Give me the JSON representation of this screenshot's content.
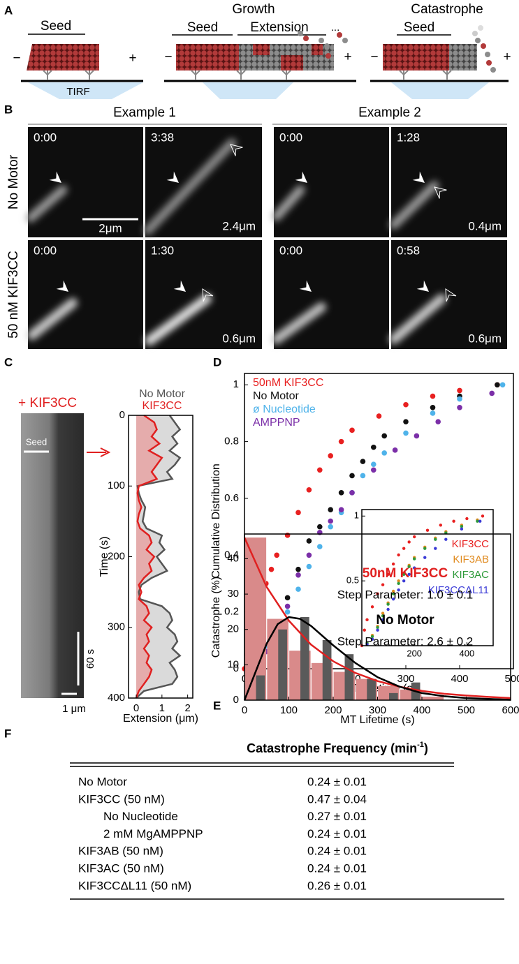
{
  "panel_a": {
    "label": "A",
    "seed_1": "Seed",
    "tirf": "TIRF",
    "growth": "Growth",
    "seed_2": "Seed",
    "extension": "Extension",
    "ellipsis": "...",
    "catastrophe": "Catastrophe",
    "seed_3": "Seed",
    "minus": "−",
    "plus": "+"
  },
  "panel_b": {
    "label": "B",
    "examples": [
      "Example 1",
      "Example 2"
    ],
    "rows": [
      "No Motor",
      "50 nM KIF3CC"
    ],
    "times": [
      [
        "0:00",
        "3:38",
        "0:00",
        "1:28"
      ],
      [
        "0:00",
        "1:30",
        "0:00",
        "0:58"
      ]
    ],
    "extensions": [
      [
        "2.4μm",
        "0.4μm"
      ],
      [
        "0.6μm",
        "0.6μm"
      ]
    ],
    "scale_bar": "2μm"
  },
  "panel_c": {
    "label": "C",
    "condition": "+ KIF3CC",
    "seed": "Seed",
    "time_bar": "60 s",
    "length_bar": "1 μm"
  },
  "panel_d": {
    "label": "D"
  },
  "panel_e": {
    "label": "E"
  },
  "chart_data": [
    {
      "type": "line",
      "swap_axes": true,
      "xlabel": "Time (s)",
      "ylabel": "Extension (μm)",
      "x": [
        0,
        10,
        20,
        30,
        40,
        50,
        60,
        70,
        80,
        90,
        100,
        110,
        120,
        130,
        140,
        150,
        160,
        170,
        180,
        190,
        200,
        210,
        220,
        230,
        240,
        250,
        260,
        270,
        280,
        290,
        300,
        310,
        320,
        330,
        340,
        350,
        360,
        370,
        380,
        390,
        400
      ],
      "xlim": [
        0,
        400
      ],
      "xticks": [
        0,
        100,
        200,
        300,
        400
      ],
      "ylim": [
        -0.3,
        2.2
      ],
      "yticks": [
        0,
        1,
        2
      ],
      "series": [
        {
          "name": "No Motor",
          "color": "#555555",
          "fill": "#d4d4d4",
          "values": [
            1.3,
            1.5,
            1.7,
            1.4,
            1.6,
            1.3,
            1.7,
            1.5,
            1.2,
            1.4,
            0.05,
            0.1,
            0.2,
            0.35,
            0.3,
            0.25,
            0.4,
            1.0,
            0.9,
            1.1,
            0.8,
            1.0,
            1.2,
            0.6,
            0.2,
            0.1,
            0.15,
            1.0,
            1.3,
            1.4,
            1.2,
            1.5,
            1.6,
            1.4,
            1.7,
            1.3,
            1.5,
            1.6,
            1.4,
            0.3,
            0.0
          ]
        },
        {
          "name": "KIF3CC",
          "color": "#e02020",
          "fill": "#e6a3a3",
          "values": [
            0.3,
            0.7,
            0.8,
            0.6,
            0.9,
            0.5,
            1.0,
            0.8,
            0.6,
            0.8,
            0.1,
            0.05,
            0.1,
            0.2,
            0.1,
            0.05,
            0.15,
            0.5,
            0.6,
            0.4,
            0.7,
            0.5,
            0.6,
            0.3,
            0.1,
            0.2,
            0.1,
            0.4,
            0.5,
            0.3,
            0.6,
            0.4,
            0.5,
            0.3,
            0.5,
            0.4,
            0.6,
            0.5,
            0.3,
            0.1,
            0.0
          ]
        }
      ]
    },
    {
      "type": "scatter",
      "xlabel": "MT Lifetime (s)",
      "ylabel": "Cumulative Distribution",
      "xlim": [
        0,
        500
      ],
      "xticks": [
        0,
        100,
        200,
        300,
        400,
        500
      ],
      "ylim": [
        0,
        1.04
      ],
      "yticks": [
        0,
        0.2,
        0.4,
        0.6,
        0.8,
        1
      ],
      "series": [
        {
          "name": "50nM KIF3CC",
          "color": "#e82020",
          "x": [
            0,
            5,
            10,
            20,
            30,
            40,
            50,
            60,
            80,
            100,
            120,
            140,
            160,
            180,
            200,
            250,
            300,
            350,
            400,
            470
          ],
          "values": [
            0,
            0.05,
            0.12,
            0.2,
            0.25,
            0.3,
            0.35,
            0.4,
            0.47,
            0.55,
            0.63,
            0.7,
            0.75,
            0.8,
            0.84,
            0.89,
            0.93,
            0.96,
            0.98,
            1.0
          ]
        },
        {
          "name": "No Motor",
          "color": "#111111",
          "x": [
            10,
            20,
            40,
            60,
            80,
            100,
            120,
            140,
            160,
            180,
            200,
            220,
            240,
            260,
            300,
            350,
            400,
            470
          ],
          "values": [
            0.02,
            0.04,
            0.08,
            0.15,
            0.25,
            0.35,
            0.45,
            0.5,
            0.56,
            0.62,
            0.68,
            0.73,
            0.78,
            0.82,
            0.87,
            0.92,
            0.96,
            1.0
          ]
        },
        {
          "name": "ø Nucleotide",
          "color": "#4fb3ea",
          "x": [
            20,
            40,
            60,
            80,
            100,
            120,
            140,
            160,
            180,
            200,
            220,
            240,
            260,
            300,
            350,
            400,
            480
          ],
          "values": [
            0.03,
            0.08,
            0.13,
            0.2,
            0.28,
            0.36,
            0.43,
            0.5,
            0.55,
            0.62,
            0.68,
            0.72,
            0.76,
            0.83,
            0.9,
            0.95,
            1.0
          ]
        },
        {
          "name": "AMPPNP",
          "color": "#7b2fa8",
          "x": [
            20,
            40,
            60,
            80,
            100,
            120,
            140,
            160,
            180,
            200,
            240,
            280,
            320,
            360,
            400,
            460
          ],
          "values": [
            0.02,
            0.06,
            0.12,
            0.22,
            0.33,
            0.4,
            0.48,
            0.52,
            0.56,
            0.62,
            0.7,
            0.77,
            0.82,
            0.87,
            0.92,
            0.97
          ]
        }
      ]
    },
    {
      "type": "scatter",
      "xlim": [
        0,
        500
      ],
      "xticks": [
        200,
        400
      ],
      "ylim": [
        0,
        1.05
      ],
      "yticks": [
        0.5,
        1
      ],
      "series": [
        {
          "name": "KIF3CC",
          "color": "#e82020",
          "x": [
            0,
            10,
            20,
            40,
            60,
            80,
            100,
            120,
            140,
            160,
            180,
            200,
            250,
            300,
            350,
            400,
            460
          ],
          "values": [
            0,
            0.12,
            0.2,
            0.3,
            0.4,
            0.47,
            0.55,
            0.63,
            0.7,
            0.75,
            0.8,
            0.84,
            0.89,
            0.93,
            0.96,
            0.98,
            1.0
          ]
        },
        {
          "name": "KIF3AB",
          "color": "#e08a1e",
          "x": [
            20,
            40,
            60,
            80,
            100,
            120,
            140,
            160,
            180,
            200,
            240,
            280,
            320,
            380,
            440
          ],
          "values": [
            0.02,
            0.08,
            0.15,
            0.25,
            0.33,
            0.42,
            0.5,
            0.56,
            0.62,
            0.68,
            0.76,
            0.83,
            0.88,
            0.93,
            0.97
          ]
        },
        {
          "name": "KIF3AC",
          "color": "#2e9a3a",
          "x": [
            20,
            40,
            60,
            80,
            100,
            120,
            140,
            160,
            180,
            200,
            240,
            280,
            320,
            380,
            440
          ],
          "values": [
            0.02,
            0.07,
            0.14,
            0.23,
            0.32,
            0.4,
            0.48,
            0.55,
            0.61,
            0.67,
            0.75,
            0.82,
            0.87,
            0.92,
            0.96
          ]
        },
        {
          "name": "KIF3CCΔL11",
          "color": "#3a3ad6",
          "x": [
            20,
            40,
            60,
            80,
            100,
            120,
            140,
            160,
            180,
            200,
            240,
            280,
            320,
            380,
            450
          ],
          "values": [
            0.01,
            0.05,
            0.12,
            0.2,
            0.28,
            0.36,
            0.43,
            0.5,
            0.55,
            0.6,
            0.68,
            0.75,
            0.82,
            0.9,
            0.96
          ]
        }
      ]
    },
    {
      "type": "bar",
      "xlabel": "MT Lifetime (s)",
      "ylabel": "Catastrophe (%)",
      "xlim": [
        0,
        600
      ],
      "xticks": [
        0,
        100,
        200,
        300,
        400,
        500,
        600
      ],
      "ylim": [
        0,
        47
      ],
      "yticks": [
        0,
        10,
        20,
        30,
        40
      ],
      "x": [
        25,
        75,
        125,
        175,
        225,
        275,
        325,
        375,
        425
      ],
      "series": [
        {
          "color": "#d98a8a",
          "values": [
            46,
            23,
            14,
            10.5,
            8,
            6,
            4,
            3,
            1
          ]
        },
        {
          "color": "#5a5a5a",
          "values": [
            7,
            20,
            23.5,
            17,
            13,
            6,
            2,
            5,
            null
          ]
        }
      ],
      "curves": [
        {
          "color": "#e02020",
          "x": [
            0,
            50,
            100,
            150,
            200,
            250,
            300,
            350,
            400,
            450,
            500,
            550,
            600
          ],
          "values": [
            46,
            32,
            22.5,
            15.7,
            11,
            7.7,
            5.4,
            3.8,
            2.6,
            1.8,
            1.3,
            0.9,
            0.6
          ]
        },
        {
          "color": "#000000",
          "x": [
            0,
            25,
            50,
            75,
            100,
            125,
            150,
            200,
            250,
            300,
            350,
            400,
            450,
            500,
            600
          ],
          "values": [
            0,
            8,
            16,
            21.5,
            23.5,
            23,
            21,
            15.5,
            10.5,
            6.5,
            3.8,
            2,
            1.1,
            0.6,
            0.1
          ]
        }
      ],
      "annotations": [
        {
          "text": "50nM KIF3CC",
          "color": "#e02020",
          "bold": true
        },
        {
          "text": "Step Parameter: 1.0 ± 0.1"
        },
        {
          "text": "No Motor",
          "bold": true
        },
        {
          "text": "Step Parameter: 2.6 ± 0.2"
        }
      ]
    }
  ],
  "panel_f": {
    "label": "F",
    "header": "Catastrophe Frequency (min",
    "header_sup": "-1",
    "header_end": ")",
    "rows": [
      {
        "name": "No Motor",
        "value": "0.24 ± 0.01"
      },
      {
        "name": "KIF3CC (50 nM)",
        "value": "0.47 ± 0.04"
      },
      {
        "name": "No Nucleotide",
        "value": "0.27 ± 0.01",
        "indent": true
      },
      {
        "name": "2 mM MgAMPPNP",
        "value": "0.24 ± 0.01",
        "indent": true
      },
      {
        "name": "KIF3AB (50 nM)",
        "value": "0.24 ± 0.01"
      },
      {
        "name": "KIF3AC (50 nM)",
        "value": "0.24 ± 0.01"
      },
      {
        "name": "KIF3CCΔL11 (50 nM)",
        "value": "0.26 ± 0.01"
      }
    ]
  }
}
